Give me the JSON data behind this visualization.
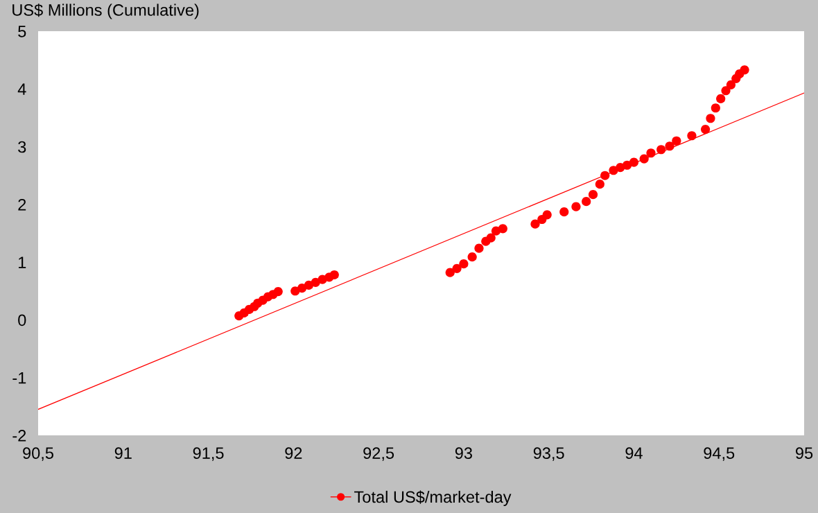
{
  "chart_data": {
    "type": "scatter",
    "ylabel": "US$ Millions (Cumulative)",
    "xlim": [
      90.5,
      95
    ],
    "ylim": [
      -2,
      5
    ],
    "xticks": [
      {
        "value": 90.5,
        "label": "90,5"
      },
      91,
      {
        "value": 91.5,
        "label": "91,5"
      },
      92,
      {
        "value": 92.5,
        "label": "92,5"
      },
      93,
      {
        "value": 93.5,
        "label": "93,5"
      },
      94,
      {
        "value": 94.5,
        "label": "94,5"
      },
      95
    ],
    "yticks": [
      -2,
      -1,
      0,
      1,
      2,
      3,
      4,
      5
    ],
    "grid": false,
    "legend": "bottom",
    "series": [
      {
        "name": "Total US$/market-day",
        "marker": "circle",
        "color": "#ff0000",
        "x": [
          91.68,
          91.71,
          91.74,
          91.77,
          91.79,
          91.82,
          91.85,
          91.88,
          91.91,
          92.01,
          92.05,
          92.09,
          92.13,
          92.17,
          92.21,
          92.24,
          92.92,
          92.96,
          93.0,
          93.05,
          93.09,
          93.13,
          93.16,
          93.19,
          93.23,
          93.42,
          93.46,
          93.49,
          93.59,
          93.66,
          93.72,
          93.76,
          93.8,
          93.83,
          93.88,
          93.92,
          93.96,
          94.0,
          94.06,
          94.1,
          94.16,
          94.21,
          94.25,
          94.34,
          94.42,
          94.45,
          94.48,
          94.51,
          94.54,
          94.57,
          94.6,
          94.62,
          94.65
        ],
        "values": [
          0.07,
          0.12,
          0.18,
          0.23,
          0.29,
          0.34,
          0.4,
          0.44,
          0.49,
          0.5,
          0.55,
          0.6,
          0.65,
          0.7,
          0.74,
          0.78,
          0.82,
          0.89,
          0.97,
          1.09,
          1.24,
          1.36,
          1.42,
          1.54,
          1.58,
          1.66,
          1.74,
          1.82,
          1.87,
          1.96,
          2.05,
          2.17,
          2.35,
          2.5,
          2.59,
          2.64,
          2.68,
          2.73,
          2.79,
          2.89,
          2.95,
          3.01,
          3.1,
          3.19,
          3.3,
          3.49,
          3.67,
          3.83,
          3.97,
          4.07,
          4.18,
          4.26,
          4.33
        ]
      },
      {
        "type": "line",
        "marker": "none",
        "color": "#ff0000",
        "x": [
          90.5,
          95
        ],
        "values": [
          -1.55,
          3.93
        ]
      }
    ]
  }
}
